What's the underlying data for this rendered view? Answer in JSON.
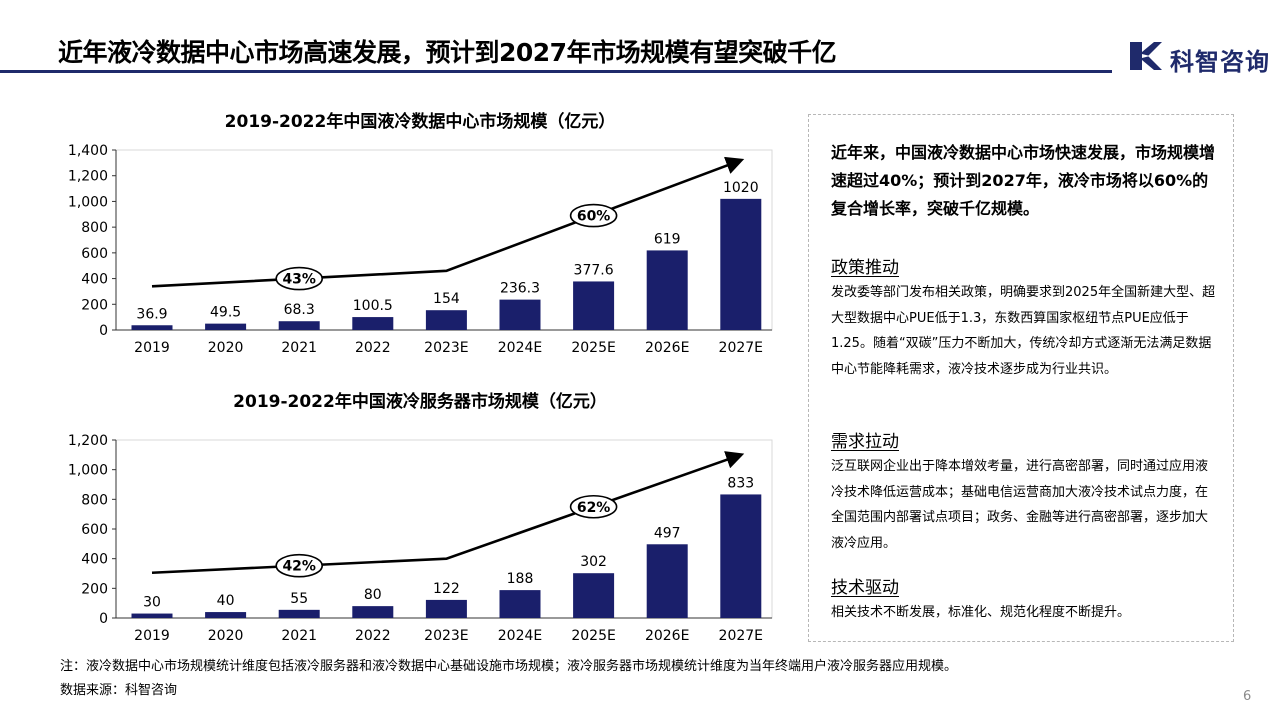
{
  "header": {
    "title": "近年液冷数据中心市场高速发展，预计到2027年市场规模有望突破千亿",
    "logo_text": "科智咨询"
  },
  "colors": {
    "bar": "#1a1f6b",
    "accent": "#1f2a6b",
    "arrow": "#000000"
  },
  "chart_data": [
    {
      "type": "bar",
      "title": "2019-2022年中国液冷数据中心市场规模（亿元）",
      "categories": [
        "2019",
        "2020",
        "2021",
        "2022",
        "2023E",
        "2024E",
        "2025E",
        "2026E",
        "2027E"
      ],
      "values": [
        36.9,
        49.5,
        68.3,
        100.5,
        154,
        236.3,
        377.6,
        619,
        1020
      ],
      "data_labels": [
        "36.9",
        "49.5",
        "68.3",
        "100.5",
        "154",
        "236.3",
        "377.6",
        "619",
        "1020"
      ],
      "ylim": [
        0,
        1400
      ],
      "yticks": [
        0,
        200,
        400,
        600,
        800,
        1000,
        1200,
        1400
      ],
      "ytick_labels": [
        "0",
        "200",
        "400",
        "600",
        "800",
        "1,000",
        "1,200",
        "1,400"
      ],
      "grid": false,
      "annotations": [
        {
          "text": "43%",
          "from_category": "2019",
          "to_category": "2023E",
          "from_value": 340,
          "to_value": 460
        },
        {
          "text": "60%",
          "from_category": "2023E",
          "to_category": "2027E",
          "from_value": 460,
          "to_value": 1320
        }
      ]
    },
    {
      "type": "bar",
      "title": "2019-2022年中国液冷服务器市场规模（亿元）",
      "categories": [
        "2019",
        "2020",
        "2021",
        "2022",
        "2023E",
        "2024E",
        "2025E",
        "2026E",
        "2027E"
      ],
      "values": [
        30,
        40,
        55,
        80,
        122,
        188,
        302,
        497,
        833
      ],
      "data_labels": [
        "30",
        "40",
        "55",
        "80",
        "122",
        "188",
        "302",
        "497",
        "833"
      ],
      "ylim": [
        0,
        1200
      ],
      "yticks": [
        0,
        200,
        400,
        600,
        800,
        1000,
        1200
      ],
      "ytick_labels": [
        "0",
        "200",
        "400",
        "600",
        "800",
        "1,000",
        "1,200"
      ],
      "grid": false,
      "annotations": [
        {
          "text": "42%",
          "from_category": "2019",
          "to_category": "2023E",
          "from_value": 305,
          "to_value": 400
        },
        {
          "text": "62%",
          "from_category": "2023E",
          "to_category": "2027E",
          "from_value": 400,
          "to_value": 1100
        }
      ]
    }
  ],
  "side_panel": {
    "lead": "近年来，中国液冷数据中心市场快速发展，市场规模增速超过40%；预计到2027年，液冷市场将以60%的复合增长率，突破千亿规模。",
    "sections": [
      {
        "heading": "政策推动",
        "body": "发改委等部门发布相关政策，明确要求到2025年全国新建大型、超大型数据中心PUE低于1.3，东数西算国家枢纽节点PUE应低于1.25。随着“双碳”压力不断加大，传统冷却方式逐渐无法满足数据中心节能降耗需求，液冷技术逐步成为行业共识。"
      },
      {
        "heading": "需求拉动",
        "body": "泛互联网企业出于降本增效考量，进行高密部署，同时通过应用液冷技术降低运营成本；基础电信运营商加大液冷技术试点力度，在全国范围内部署试点项目；政务、金融等进行高密部署，逐步加大液冷应用。"
      },
      {
        "heading": "技术驱动",
        "body": "相关技术不断发展，标准化、规范化程度不断提升。"
      }
    ]
  },
  "footer": {
    "note": "注：液冷数据中心市场规模统计维度包括液冷服务器和液冷数据中心基础设施市场规模；液冷服务器市场规模统计维度为当年终端用户液冷服务器应用规模。",
    "source": "数据来源：科智咨询",
    "page_number": "6"
  }
}
